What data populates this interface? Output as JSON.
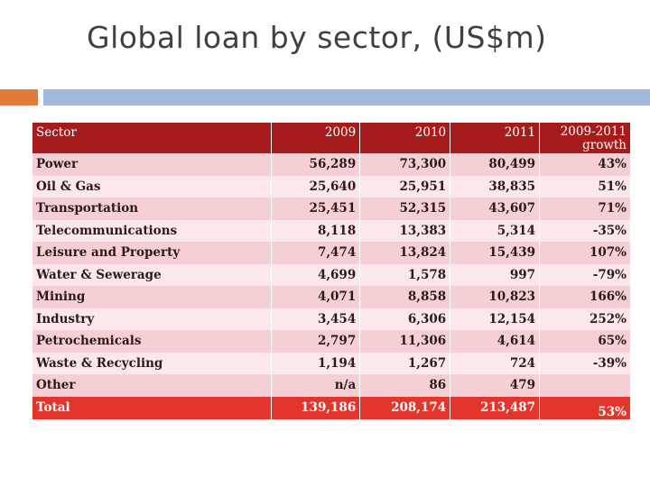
{
  "title": "Global loan by sector, (US$m)",
  "table": {
    "headers": [
      "Sector",
      "2009",
      "2010",
      "2011",
      "2009-2011 growth"
    ],
    "rows": [
      [
        "Power",
        "56,289",
        "73,300",
        "80,499",
        "43%"
      ],
      [
        "Oil & Gas",
        "25,640",
        "25,951",
        "38,835",
        "51%"
      ],
      [
        "Transportation",
        "25,451",
        "52,315",
        "43,607",
        "71%"
      ],
      [
        "Telecommunications",
        "8,118",
        "13,383",
        "5,314",
        "-35%"
      ],
      [
        "Leisure and Property",
        "7,474",
        "13,824",
        "15,439",
        "107%"
      ],
      [
        "Water & Sewerage",
        "4,699",
        "1,578",
        "997",
        "-79%"
      ],
      [
        "Mining",
        "4,071",
        "8,858",
        "10,823",
        "166%"
      ],
      [
        "Industry",
        "3,454",
        "6,306",
        "12,154",
        "252%"
      ],
      [
        "Petrochemicals",
        "2,797",
        "11,306",
        "4,614",
        "65%"
      ],
      [
        "Waste & Recycling",
        "1,194",
        "1,267",
        "724",
        "-39%"
      ],
      [
        "Other",
        "n/a",
        "86",
        "479",
        ""
      ]
    ],
    "total": [
      "Total",
      "139,186",
      "208,174",
      "213,487",
      "53%"
    ]
  }
}
